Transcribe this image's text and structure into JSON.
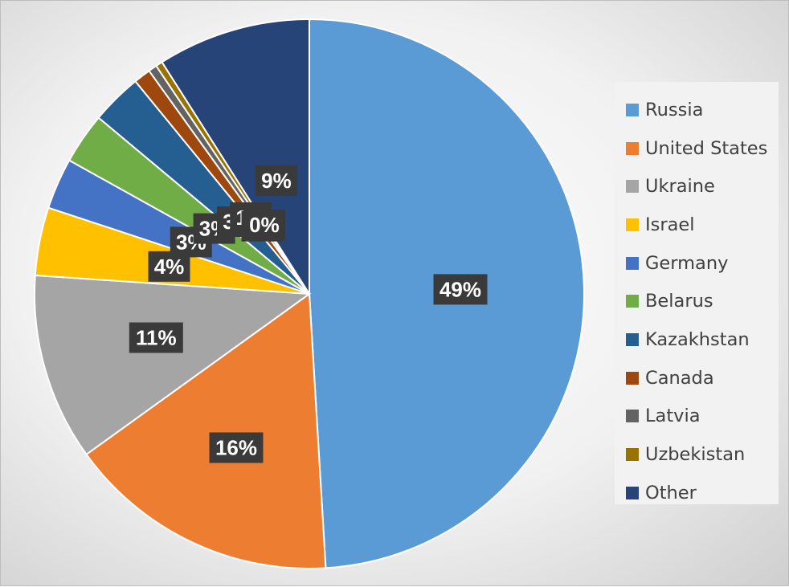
{
  "chart_data": {
    "type": "pie",
    "title": "",
    "categories": [
      "Russia",
      "United States",
      "Ukraine",
      "Israel",
      "Germany",
      "Belarus",
      "Kazakhstan",
      "Canada",
      "Latvia",
      "Uzbekistan",
      "Other"
    ],
    "values": [
      49,
      16,
      11,
      4,
      3,
      3,
      3,
      1,
      0.5,
      0.4,
      9
    ],
    "data_labels": [
      "49%",
      "16%",
      "11%",
      "4%",
      "3%",
      "3%",
      "3%",
      "1%",
      "0%",
      "0%",
      "9%"
    ],
    "colors": [
      "#5b9bd5",
      "#ed7d31",
      "#a5a5a5",
      "#ffc000",
      "#4472c4",
      "#70ad47",
      "#255e91",
      "#9e480e",
      "#636363",
      "#997300",
      "#264478"
    ],
    "legend": {
      "position": "right"
    }
  }
}
